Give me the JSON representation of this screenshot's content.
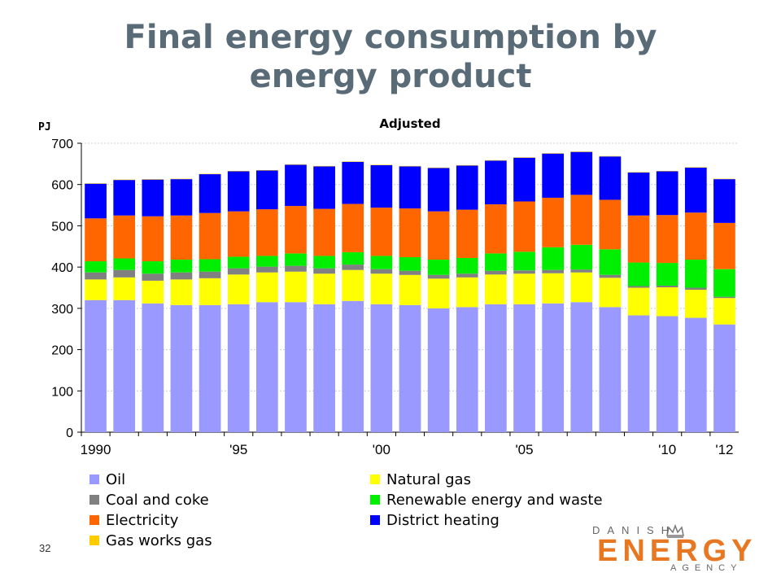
{
  "slide": {
    "title_line1": "Final energy consumption by",
    "title_line2": "energy product",
    "page_number": "32"
  },
  "logo": {
    "top": "DANISH",
    "main": "ENERGY",
    "bottom": "AGENCY"
  },
  "colors": {
    "Oil": "#9999ff",
    "Natural gas": "#ffff00",
    "Coal and coke": "#808080",
    "Renewable energy and waste": "#00ee00",
    "Electricity": "#ff6600",
    "District heating": "#0000ff",
    "Gas works gas": "#ffcc00",
    "title": "#5a6b78",
    "logo": "#e87722"
  },
  "chart_data": {
    "type": "bar",
    "stacked": true,
    "title": "Adjusted",
    "ylabel": "PJ",
    "ylim": [
      0,
      700
    ],
    "yticks": [
      0,
      100,
      200,
      300,
      400,
      500,
      600,
      700
    ],
    "grid": true,
    "legend_position": "bottom",
    "categories": [
      "1990",
      "1991",
      "1992",
      "1993",
      "1994",
      "1995",
      "1996",
      "1997",
      "1998",
      "1999",
      "2000",
      "2001",
      "2002",
      "2003",
      "2004",
      "2005",
      "2006",
      "2007",
      "2008",
      "2009",
      "2010",
      "2011",
      "2012"
    ],
    "category_tick_labels": [
      "1990",
      "",
      "",
      "",
      "",
      "'95",
      "",
      "",
      "",
      "",
      "'00",
      "",
      "",
      "",
      "",
      "'05",
      "",
      "",
      "",
      "",
      "'10",
      "",
      "'12"
    ],
    "series": [
      {
        "name": "Oil",
        "values": [
          320,
          320,
          312,
          308,
          308,
          310,
          315,
          315,
          310,
          318,
          310,
          308,
          300,
          303,
          310,
          310,
          312,
          315,
          303,
          283,
          281,
          277,
          261
        ]
      },
      {
        "name": "Natural gas",
        "values": [
          50,
          55,
          55,
          62,
          65,
          72,
          72,
          74,
          74,
          75,
          74,
          73,
          72,
          72,
          72,
          74,
          73,
          72,
          71,
          67,
          70,
          68,
          64
        ]
      },
      {
        "name": "Coal and coke",
        "values": [
          17,
          18,
          17,
          17,
          16,
          15,
          14,
          14,
          13,
          13,
          11,
          10,
          9,
          9,
          9,
          8,
          8,
          7,
          7,
          4,
          4,
          5,
          3
        ]
      },
      {
        "name": "Renewable energy and waste",
        "values": [
          27,
          28,
          30,
          31,
          30,
          28,
          26,
          30,
          30,
          30,
          32,
          33,
          37,
          38,
          42,
          45,
          55,
          60,
          62,
          57,
          55,
          68,
          67
        ]
      },
      {
        "name": "Electricity",
        "values": [
          104,
          104,
          109,
          107,
          112,
          110,
          113,
          115,
          114,
          117,
          117,
          118,
          117,
          117,
          119,
          122,
          120,
          121,
          120,
          114,
          116,
          114,
          112
        ]
      },
      {
        "name": "District heating",
        "values": [
          84,
          86,
          89,
          88,
          94,
          97,
          94,
          100,
          103,
          102,
          103,
          102,
          105,
          107,
          106,
          106,
          107,
          104,
          105,
          104,
          106,
          109,
          106
        ]
      },
      {
        "name": "Gas works gas",
        "values": [
          1,
          1,
          1,
          1,
          1,
          1,
          1,
          1,
          1,
          1,
          1,
          1,
          1,
          1,
          1,
          1,
          1,
          1,
          1,
          1,
          1,
          1,
          1
        ]
      }
    ],
    "legend_columns": [
      [
        "Oil",
        "Coal and coke",
        "Electricity",
        "Gas works gas"
      ],
      [
        "Natural gas",
        "Renewable energy and waste",
        "District heating"
      ]
    ]
  }
}
